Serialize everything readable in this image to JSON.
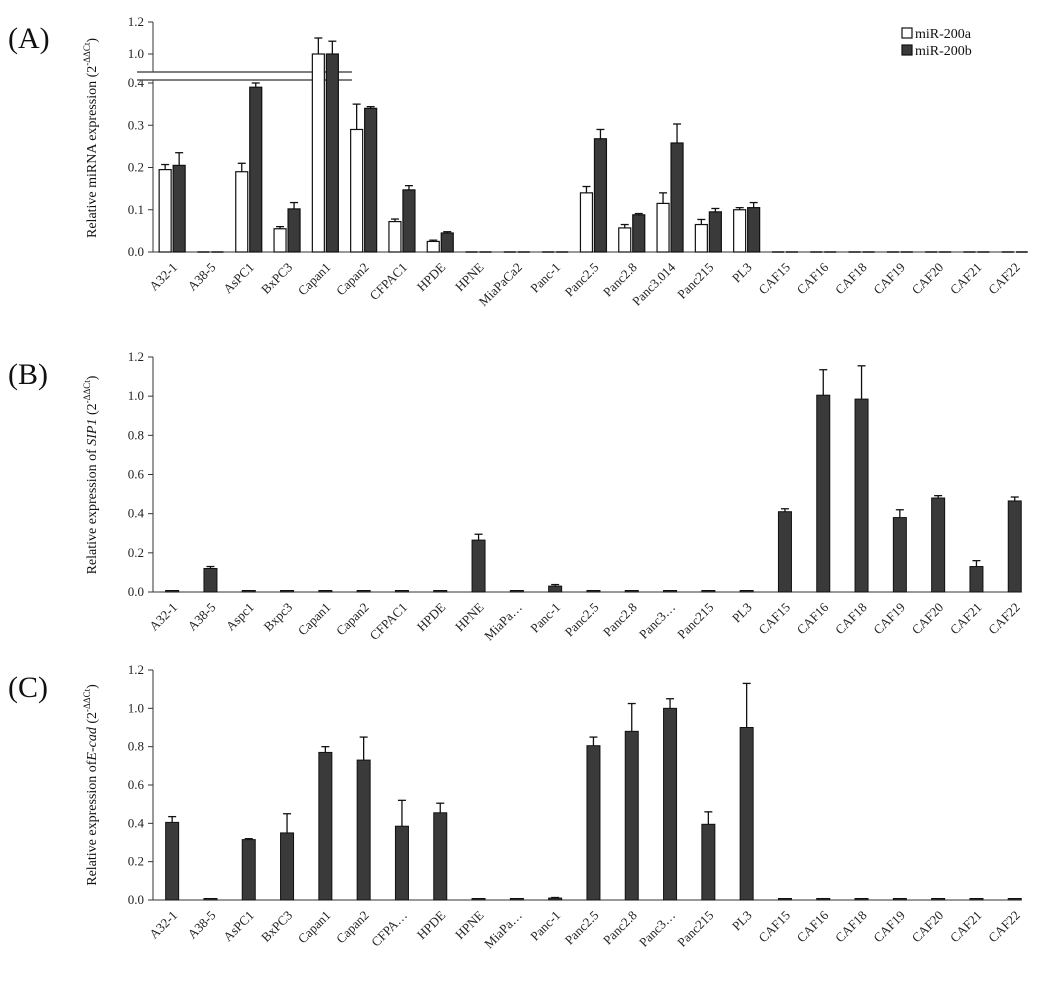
{
  "chart_data": [
    {
      "type": "bar",
      "panel_label": "(A)",
      "ylabel": "Relative miRNA expression (2",
      "ylabel_exp": "-ΔΔCt",
      "ylabel_close": ")",
      "categories": [
        "A32-1",
        "A38-5",
        "AsPC1",
        "BxPC3",
        "Capan1",
        "Capan2",
        "CFPAC1",
        "HPDE",
        "HPNE",
        "MiaPaCa2",
        "Panc-1",
        "Panc2.5",
        "Panc2.8",
        "Panc3.014",
        "Panc215",
        "PL3",
        "CAF15",
        "CAF16",
        "CAF18",
        "CAF19",
        "CAF20",
        "CAF21",
        "CAF22"
      ],
      "axis_break": {
        "lower_max": 0.4,
        "upper_min": 0.9
      },
      "lower_ticks": [
        0.0,
        0.1,
        0.2,
        0.3,
        0.4
      ],
      "upper_ticks": [
        1.0,
        1.2
      ],
      "tick_labels": {
        "0": "0.0",
        "0.1": "0.1",
        "0.2": "0.2",
        "0.3": "0.3",
        "0.4": "0.4",
        "1": "1.0",
        "1.2": "1.2"
      },
      "legend_position": "top-right",
      "series": [
        {
          "name": "miR-200a",
          "color": "#ffffff",
          "values": [
            0.195,
            0,
            0.19,
            0.055,
            1.0,
            0.29,
            0.072,
            0.025,
            0,
            0,
            0,
            0.14,
            0.057,
            0.115,
            0.065,
            0.1,
            0,
            0,
            0,
            0,
            0,
            0,
            0
          ],
          "errors": [
            0.012,
            0,
            0.02,
            0.005,
            0.1,
            0.06,
            0.006,
            0.003,
            0,
            0,
            0,
            0.015,
            0.008,
            0.025,
            0.012,
            0.005,
            0,
            0,
            0,
            0,
            0,
            0,
            0
          ]
        },
        {
          "name": "miR-200b",
          "color": "#3a3a3a",
          "values": [
            0.205,
            0,
            0.39,
            0.102,
            1.0,
            0.34,
            0.147,
            0.045,
            0,
            0,
            0,
            0.268,
            0.088,
            0.258,
            0.095,
            0.105,
            0,
            0,
            0,
            0,
            0,
            0,
            0
          ],
          "errors": [
            0.03,
            0,
            0.01,
            0.015,
            0.08,
            0.004,
            0.01,
            0.003,
            0,
            0,
            0,
            0.022,
            0.003,
            0.045,
            0.008,
            0.012,
            0,
            0,
            0,
            0,
            0,
            0,
            0
          ]
        }
      ]
    },
    {
      "type": "bar",
      "panel_label": "(B)",
      "ylabel": "Relative expression of ",
      "ylabel_italic": "SIP1",
      "ylabel_after": " (2",
      "ylabel_exp": "-ΔΔCt",
      "ylabel_close": ")",
      "categories": [
        "A32-1",
        "A38-5",
        "Aspc1",
        "Bxpc3",
        "Capan1",
        "Capan2",
        "CFPAC1",
        "HPDE",
        "HPNE",
        "MiaPa…",
        "Panc-1",
        "Panc2.5",
        "Panc2.8",
        "Panc3…",
        "Panc215",
        "PL3",
        "CAF15",
        "CAF16",
        "CAF18",
        "CAF19",
        "CAF20",
        "CAF21",
        "CAF22"
      ],
      "ylim": [
        0,
        1.2
      ],
      "ticks": [
        0.0,
        0.2,
        0.4,
        0.6,
        0.8,
        1.0,
        1.2
      ],
      "tick_labels": [
        "0.0",
        "0.2",
        "0.4",
        "0.6",
        "0.8",
        "1.0",
        "1.2"
      ],
      "series": [
        {
          "color": "#3a3a3a",
          "values": [
            0.002,
            0.12,
            0.002,
            0.002,
            0.002,
            0.002,
            0.005,
            0.002,
            0.265,
            0.002,
            0.03,
            0.002,
            0.003,
            0.002,
            0.002,
            0.002,
            0.41,
            1.005,
            0.985,
            0.38,
            0.48,
            0.13,
            0.465
          ],
          "errors": [
            0,
            0.01,
            0,
            0,
            0,
            0,
            0.002,
            0,
            0.03,
            0,
            0.008,
            0,
            0,
            0,
            0,
            0,
            0.015,
            0.13,
            0.17,
            0.04,
            0.012,
            0.03,
            0.02
          ]
        }
      ]
    },
    {
      "type": "bar",
      "panel_label": "(C)",
      "ylabel": "Relative expression of",
      "ylabel_italic": "E-cad",
      "ylabel_after": " (2",
      "ylabel_exp": "-ΔΔCt",
      "ylabel_close": ")",
      "categories": [
        "A32-1",
        "A38-5",
        "AsPC1",
        "BxPC3",
        "Capan1",
        "Capan2",
        "CFPA…",
        "HPDE",
        "HPNE",
        "MiaPa…",
        "Panc-1",
        "Panc2.5",
        "Panc2.8",
        "Panc3…",
        "Panc215",
        "PL3",
        "CAF15",
        "CAF16",
        "CAF18",
        "CAF19",
        "CAF20",
        "CAF21",
        "CAF22"
      ],
      "ylim": [
        0,
        1.2
      ],
      "ticks": [
        0.0,
        0.2,
        0.4,
        0.6,
        0.8,
        1.0,
        1.2
      ],
      "tick_labels": [
        "0.0",
        "0.2",
        "0.4",
        "0.6",
        "0.8",
        "1.0",
        "1.2"
      ],
      "series": [
        {
          "color": "#3a3a3a",
          "values": [
            0.405,
            0.003,
            0.315,
            0.35,
            0.77,
            0.73,
            0.385,
            0.455,
            0.002,
            0.002,
            0.01,
            0.805,
            0.88,
            1.0,
            0.395,
            0.9,
            0.003,
            0.003,
            0.002,
            0.002,
            0.002,
            0.002,
            0.003
          ],
          "errors": [
            0.03,
            0,
            0.005,
            0.1,
            0.03,
            0.12,
            0.135,
            0.05,
            0,
            0,
            0.003,
            0.045,
            0.145,
            0.05,
            0.065,
            0.23,
            0,
            0,
            0,
            0,
            0,
            0,
            0
          ]
        }
      ]
    }
  ]
}
